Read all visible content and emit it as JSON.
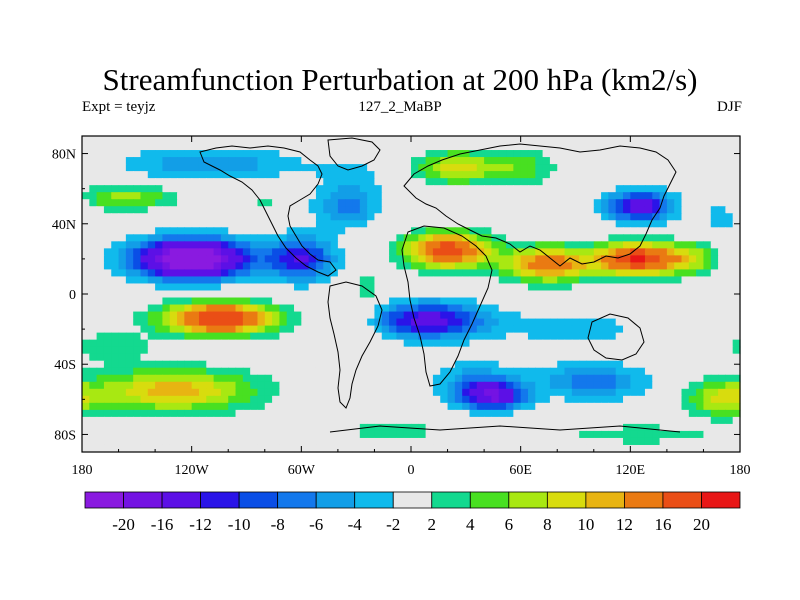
{
  "chart_data": {
    "type": "heatmap",
    "title": "Streamfunction Perturbation at 200 hPa (km2/s)",
    "subtitle_left": "Expt = teyjz",
    "subtitle_center": "127_2_MaBP",
    "subtitle_right": "DJF",
    "x_ticks": [
      "180",
      "120W",
      "60W",
      "0",
      "60E",
      "120E",
      "180"
    ],
    "x_tick_values": [
      -180,
      -120,
      -60,
      0,
      60,
      120,
      180
    ],
    "y_ticks": [
      "80N",
      "40N",
      "0",
      "40S",
      "80S"
    ],
    "y_tick_values": [
      80,
      40,
      0,
      -40,
      -80
    ],
    "xlim": [
      -180,
      180
    ],
    "ylim": [
      -90,
      90
    ],
    "colorbar": {
      "levels": [
        "-20",
        "-16",
        "-12",
        "-10",
        "-8",
        "-6",
        "-4",
        "-2",
        "2",
        "4",
        "6",
        "8",
        "10",
        "12",
        "16",
        "20"
      ],
      "level_values": [
        -20,
        -16,
        -12,
        -10,
        -8,
        -6,
        -4,
        -2,
        2,
        4,
        6,
        8,
        10,
        12,
        16,
        20
      ],
      "colors": [
        "#8a1ae0",
        "#7413e3",
        "#5c10e6",
        "#2a14e8",
        "#0a4ee6",
        "#1378ec",
        "#129ee7",
        "#10baec",
        "#e8e8e8",
        "#13d98f",
        "#48e021",
        "#a8e812",
        "#d8dc0e",
        "#e8b412",
        "#ea7a12",
        "#ea4e16",
        "#e81616"
      ]
    },
    "centers": [
      {
        "lon": -120,
        "lat": 20,
        "value": -26,
        "slon": 30,
        "slat": 11
      },
      {
        "lon": -60,
        "lat": 20,
        "value": -12,
        "slon": 18,
        "slat": 12
      },
      {
        "lon": -25,
        "lat": -2,
        "value": 3,
        "slon": 9,
        "slat": 25
      },
      {
        "lon": 20,
        "lat": 25,
        "value": 18,
        "slon": 22,
        "slat": 10
      },
      {
        "lon": 75,
        "lat": 17,
        "value": 14,
        "slon": 25,
        "slat": 10
      },
      {
        "lon": 125,
        "lat": 20,
        "value": 20,
        "slon": 22,
        "slat": 9
      },
      {
        "lon": 155,
        "lat": 20,
        "value": 6,
        "slon": 14,
        "slat": 9
      },
      {
        "lon": 25,
        "lat": 72,
        "value": 9,
        "slon": 22,
        "slat": 9
      },
      {
        "lon": 60,
        "lat": 72,
        "value": 5,
        "slon": 18,
        "slat": 10
      },
      {
        "lon": -155,
        "lat": 55,
        "value": 7,
        "slon": 25,
        "slat": 7
      },
      {
        "lon": -80,
        "lat": 52,
        "value": 2.5,
        "slon": 10,
        "slat": 4
      },
      {
        "lon": -110,
        "lat": 74,
        "value": -6,
        "slon": 45,
        "slat": 9
      },
      {
        "lon": -35,
        "lat": 50,
        "value": -7,
        "slon": 17,
        "slat": 12
      },
      {
        "lon": -30,
        "lat": 70,
        "value": -2,
        "slon": 25,
        "slat": 12
      },
      {
        "lon": 125,
        "lat": 50,
        "value": -14,
        "slon": 18,
        "slat": 9
      },
      {
        "lon": 170,
        "lat": 45,
        "value": -3,
        "slon": 10,
        "slat": 14
      },
      {
        "lon": 110,
        "lat": 70,
        "value": 2,
        "slon": 25,
        "slat": 10
      },
      {
        "lon": -105,
        "lat": -14,
        "value": 20,
        "slon": 30,
        "slat": 9
      },
      {
        "lon": -130,
        "lat": -55,
        "value": 11,
        "slon": 45,
        "slat": 12
      },
      {
        "lon": -165,
        "lat": -30,
        "value": 4,
        "slon": 22,
        "slat": 8
      },
      {
        "lon": 10,
        "lat": -15,
        "value": -14,
        "slon": 30,
        "slat": 10
      },
      {
        "lon": 35,
        "lat": -50,
        "value": -5,
        "slon": 22,
        "slat": 12
      },
      {
        "lon": 45,
        "lat": -58,
        "value": -15,
        "slon": 17,
        "slat": 8
      },
      {
        "lon": 100,
        "lat": -50,
        "value": -7,
        "slon": 30,
        "slat": 10
      },
      {
        "lon": 90,
        "lat": -20,
        "value": -3,
        "slon": 40,
        "slat": 12
      },
      {
        "lon": 170,
        "lat": -60,
        "value": 8,
        "slon": 18,
        "slat": 10
      },
      {
        "lon": -10,
        "lat": -78,
        "value": 4,
        "slon": 25,
        "slat": 6
      },
      {
        "lon": 125,
        "lat": -80,
        "value": 4,
        "slon": 40,
        "slat": 5
      }
    ]
  }
}
